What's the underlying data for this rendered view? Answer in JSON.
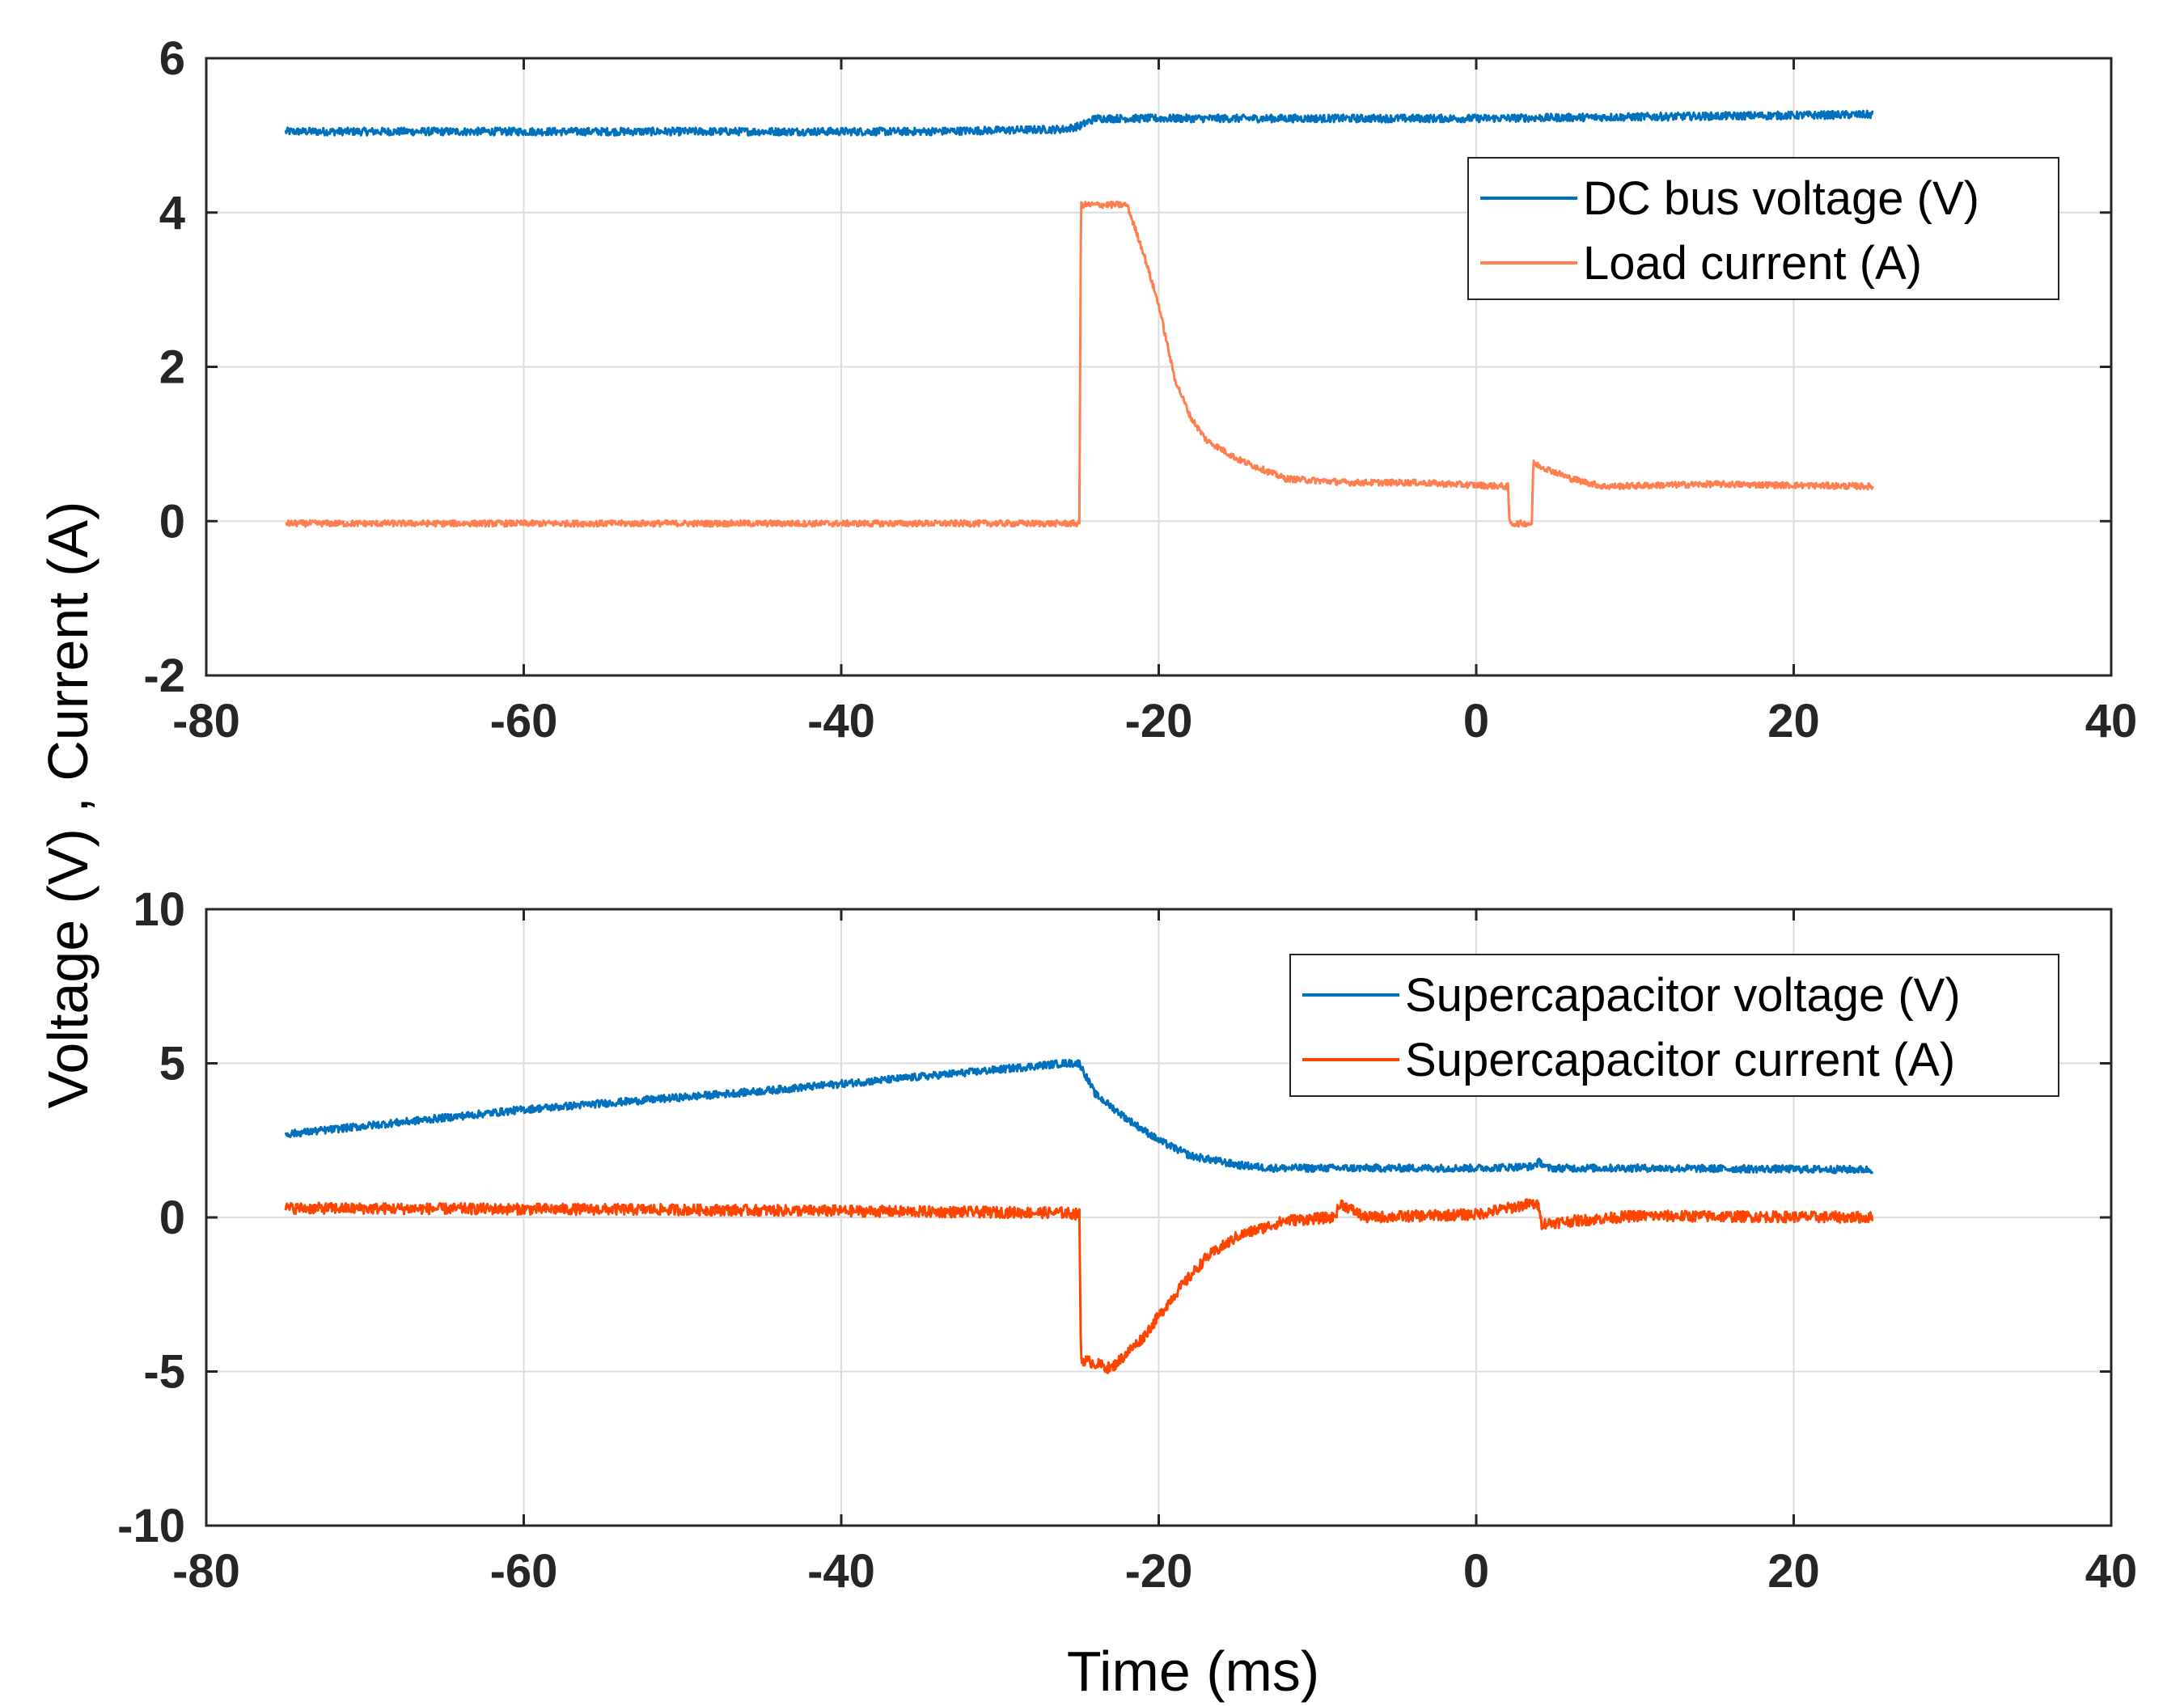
{
  "ylabel": "Voltage (V) , Current (A)",
  "xlabel": "Time (ms)",
  "chart_data": [
    {
      "type": "line",
      "xlim": [
        -80,
        40
      ],
      "ylim": [
        -2,
        6
      ],
      "xticks": [
        -80,
        -60,
        -40,
        -20,
        0,
        20,
        40
      ],
      "yticks": [
        -2,
        0,
        2,
        4,
        6
      ],
      "grid": true,
      "legend_position": "top-right",
      "series": [
        {
          "name": "DC bus voltage (V)",
          "color": "#0072BD",
          "noise": 0.05,
          "x": [
            -75,
            -50,
            -35,
            -26,
            -25,
            -24,
            -15,
            0,
            10,
            25
          ],
          "y": [
            5.05,
            5.05,
            5.05,
            5.08,
            5.12,
            5.22,
            5.22,
            5.22,
            5.24,
            5.27
          ]
        },
        {
          "name": "Load current (A)",
          "color": "#FF7F50",
          "noise": 0.04,
          "x": [
            -75,
            -25,
            -24.9,
            -22,
            -21,
            -20,
            -19,
            -18,
            -17,
            -15,
            -12,
            -8,
            -4,
            2,
            2.1,
            3.5,
            3.6,
            6,
            8,
            15,
            25
          ],
          "y": [
            -0.03,
            -0.03,
            4.1,
            4.1,
            3.5,
            2.8,
            1.85,
            1.35,
            1.05,
            0.8,
            0.55,
            0.5,
            0.5,
            0.45,
            -0.03,
            -0.03,
            0.75,
            0.55,
            0.45,
            0.48,
            0.45
          ]
        }
      ]
    },
    {
      "type": "line",
      "xlim": [
        -80,
        40
      ],
      "ylim": [
        -10,
        10
      ],
      "xticks": [
        -80,
        -60,
        -40,
        -20,
        0,
        20,
        40
      ],
      "yticks": [
        -10,
        -5,
        0,
        5,
        10
      ],
      "grid": true,
      "legend_position": "top-right",
      "series": [
        {
          "name": "Supercapacitor voltage (V)",
          "color": "#0072BD",
          "noise": 0.12,
          "x": [
            -75,
            -60,
            -45,
            -30,
            -26,
            -25,
            -24,
            -22,
            -20,
            -18,
            -15,
            -13,
            -10,
            0,
            3.5,
            4,
            4.5,
            10,
            25
          ],
          "y": [
            2.7,
            3.5,
            4.1,
            4.8,
            5.0,
            5.0,
            4.0,
            3.2,
            2.5,
            2.0,
            1.7,
            1.6,
            1.6,
            1.6,
            1.65,
            1.8,
            1.6,
            1.6,
            1.55
          ]
        },
        {
          "name": "Supercapacitor current (A)",
          "color": "#FF4500",
          "noise": 0.18,
          "x": [
            -75,
            -50,
            -26,
            -25,
            -24.9,
            -23,
            -21,
            -19,
            -17,
            -15,
            -12,
            -9,
            -8.5,
            -7,
            0,
            3.5,
            4,
            4.1,
            10,
            25
          ],
          "y": [
            0.3,
            0.25,
            0.15,
            0.1,
            -4.6,
            -4.9,
            -3.9,
            -2.5,
            -1.3,
            -0.6,
            -0.1,
            0.0,
            0.45,
            0.0,
            0.1,
            0.45,
            0.35,
            -0.2,
            0.05,
            0.0
          ]
        }
      ]
    }
  ]
}
